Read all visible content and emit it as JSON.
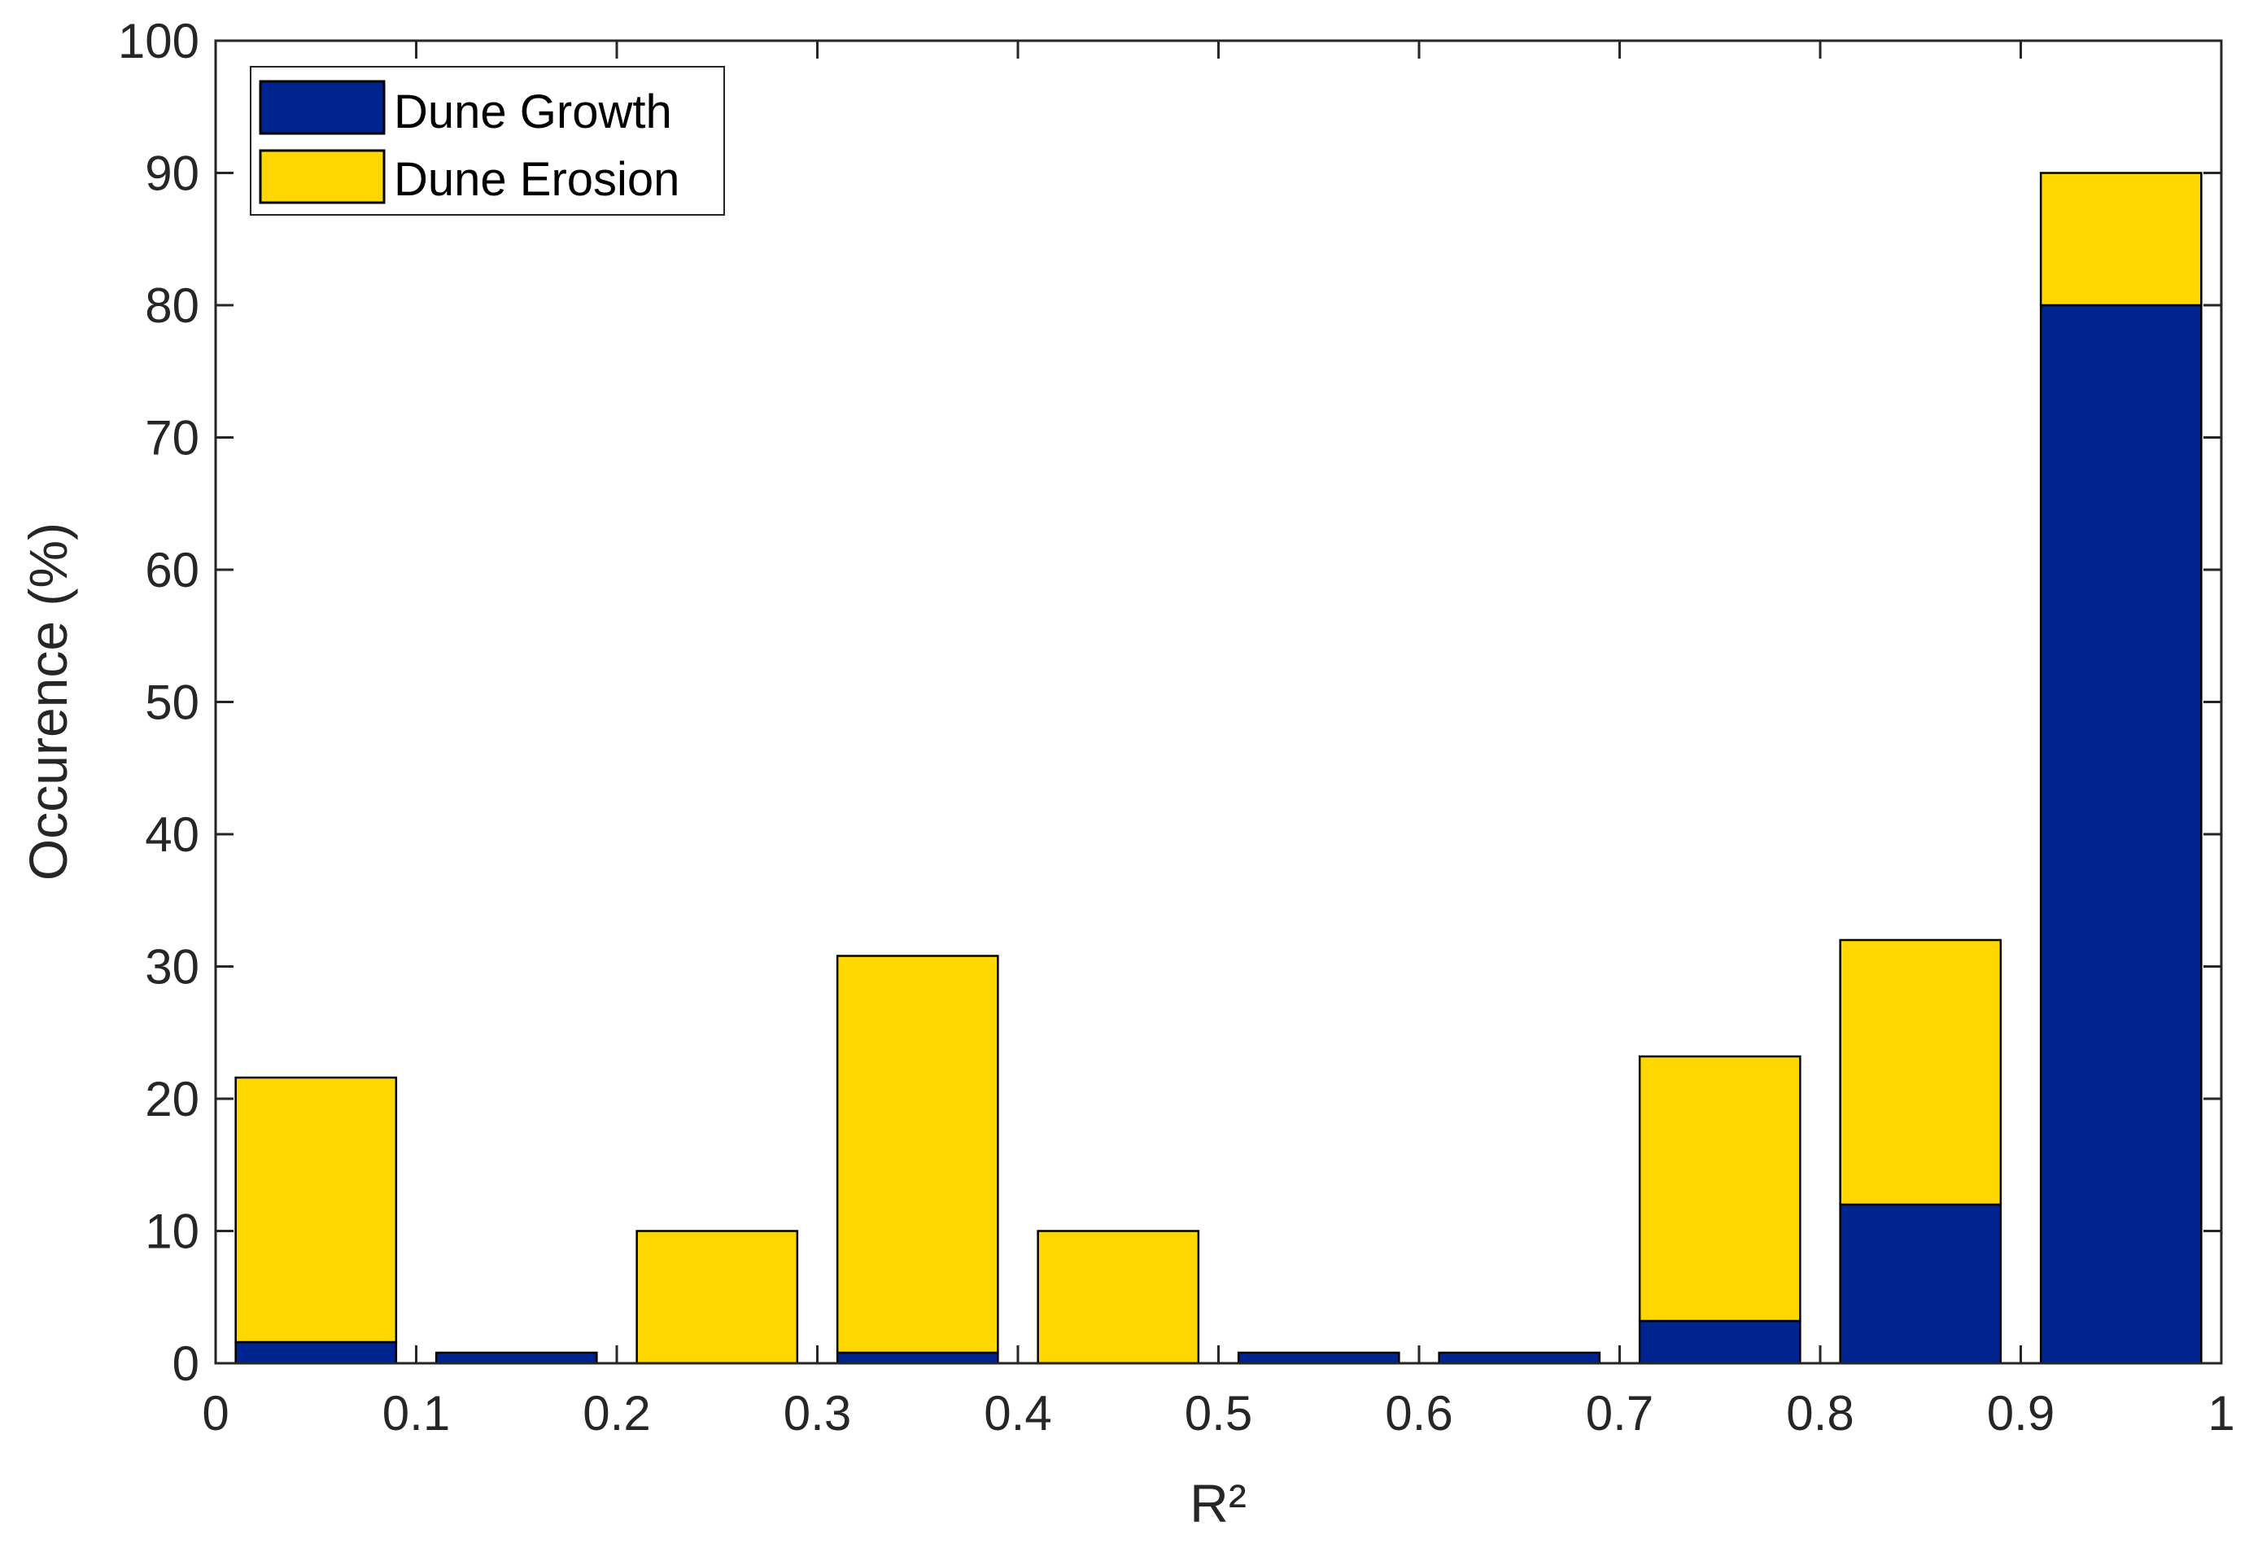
{
  "chart_data": {
    "type": "bar",
    "stacked": true,
    "xlabel": "R²",
    "ylabel": "Occurence (%)",
    "xlim": [
      0,
      1
    ],
    "ylim": [
      0,
      100
    ],
    "x_ticks": [
      "0",
      "0.1",
      "0.2",
      "0.3",
      "0.4",
      "0.5",
      "0.6",
      "0.7",
      "0.8",
      "0.9",
      "1"
    ],
    "y_ticks": [
      "0",
      "10",
      "20",
      "30",
      "40",
      "50",
      "60",
      "70",
      "80",
      "90",
      "100"
    ],
    "bin_edges": [
      0,
      0.1,
      0.2,
      0.3,
      0.4,
      0.5,
      0.6,
      0.7,
      0.8,
      0.9,
      1
    ],
    "categories": [
      "0-0.1",
      "0.1-0.2",
      "0.2-0.3",
      "0.3-0.4",
      "0.4-0.5",
      "0.5-0.6",
      "0.6-0.7",
      "0.7-0.8",
      "0.8-0.9",
      "0.9-1"
    ],
    "series": [
      {
        "name": "Dune Growth",
        "color": "#00248f",
        "values": [
          1.6,
          0.8,
          0,
          0.8,
          0,
          0.8,
          0.8,
          3.2,
          12,
          80
        ]
      },
      {
        "name": "Dune Erosion",
        "color": "#ffd700",
        "values": [
          20,
          0,
          10,
          30,
          10,
          0,
          0,
          20,
          20,
          10
        ]
      }
    ],
    "totals": [
      21.6,
      0.8,
      10,
      30.8,
      10,
      0.8,
      0.8,
      23.2,
      32,
      90
    ],
    "grid": false,
    "legend_position": "top-left"
  }
}
